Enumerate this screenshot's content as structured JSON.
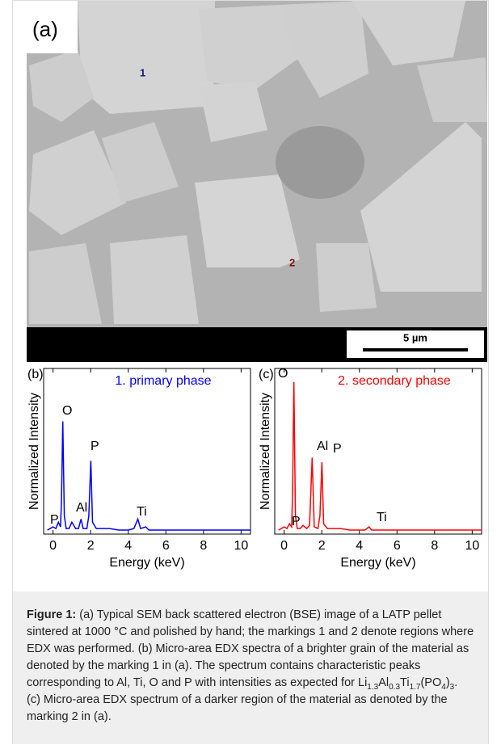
{
  "panel_a": {
    "label": "(a)",
    "markers": [
      "1",
      "2"
    ],
    "scale_bar": "5 µm"
  },
  "chart_data": [
    {
      "type": "line",
      "panel_label": "(b)",
      "x_label": "Energy (keV)",
      "y_label": "Normalized Intensity",
      "x": [
        -0.3,
        0,
        0.15,
        0.28,
        0.4,
        0.45,
        0.52,
        0.6,
        0.7,
        0.85,
        1.0,
        1.2,
        1.35,
        1.49,
        1.6,
        1.8,
        1.9,
        2.01,
        2.1,
        2.3,
        2.6,
        3,
        3.5,
        4,
        4.3,
        4.51,
        4.65,
        4.93,
        5.1,
        6,
        7,
        8,
        9,
        10,
        10.5
      ],
      "series": [
        {
          "name": "1. primary phase",
          "color": "#0000ff",
          "values": [
            0.01,
            0.03,
            0.02,
            0.06,
            0.03,
            0.2,
            0.7,
            0.1,
            0.02,
            0.02,
            0.06,
            0.02,
            0.02,
            0.08,
            0.02,
            0.02,
            0.1,
            0.45,
            0.06,
            0.02,
            0.02,
            0.02,
            0.01,
            0.01,
            0.02,
            0.08,
            0.02,
            0.03,
            0.01,
            0.01,
            0.01,
            0.01,
            0.01,
            0.01,
            0.01
          ]
        }
      ],
      "annotations": [
        "P",
        "O",
        "Al",
        "P",
        "Ti"
      ],
      "xlim": [
        -0.5,
        10.5
      ],
      "xticks": [
        0,
        2,
        4,
        6,
        8,
        10
      ],
      "ylim": [
        0,
        1
      ]
    },
    {
      "type": "line",
      "panel_label": "(c)",
      "x_label": "Energy (keV)",
      "y_label": "Normalized Intensity",
      "x": [
        -0.3,
        0,
        0.15,
        0.28,
        0.4,
        0.45,
        0.52,
        0.6,
        0.7,
        0.85,
        1.0,
        1.2,
        1.35,
        1.49,
        1.6,
        1.8,
        1.9,
        2.01,
        2.1,
        2.3,
        2.6,
        3,
        3.5,
        4,
        4.3,
        4.51,
        4.65,
        4.93,
        5.1,
        6,
        7,
        8,
        9,
        10,
        10.5
      ],
      "series": [
        {
          "name": "2. secondary phase",
          "color": "#ff0000",
          "values": [
            0.01,
            0.03,
            0.02,
            0.05,
            0.03,
            0.25,
            0.95,
            0.1,
            0.02,
            0.02,
            0.04,
            0.02,
            0.04,
            0.47,
            0.03,
            0.02,
            0.1,
            0.44,
            0.05,
            0.02,
            0.02,
            0.02,
            0.01,
            0.01,
            0.01,
            0.03,
            0.01,
            0.01,
            0.01,
            0.01,
            0.01,
            0.01,
            0.01,
            0.01,
            0.01
          ]
        }
      ],
      "annotations": [
        "O",
        "Al",
        "P",
        "P",
        "Ti"
      ],
      "xlim": [
        -0.5,
        10.5
      ],
      "xticks": [
        0,
        2,
        4,
        6,
        8,
        10
      ],
      "ylim": [
        0,
        1
      ]
    }
  ],
  "caption": {
    "label": "Figure 1:",
    "text_1": " (a) Typical SEM back scattered electron (BSE) image of a LATP pellet sintered at 1000 °C and polished by hand; the markings 1 and 2 denote regions where EDX was performed. (b) Micro-area EDX spectra of a brighter grain of the material as denoted by the marking 1 in (a). The spectrum contains characteristic peaks corresponding to Al, Ti, O and P with intensities as expected for ",
    "formula": [
      "Li",
      "1.3",
      "Al",
      "0.3",
      "Ti",
      "1.7",
      "(PO",
      "4",
      ")",
      "3"
    ],
    "text_2": ".",
    "text_3": "(c) Micro-area EDX spectrum of a darker region of the material as denoted by the marking 2 in (a)."
  }
}
